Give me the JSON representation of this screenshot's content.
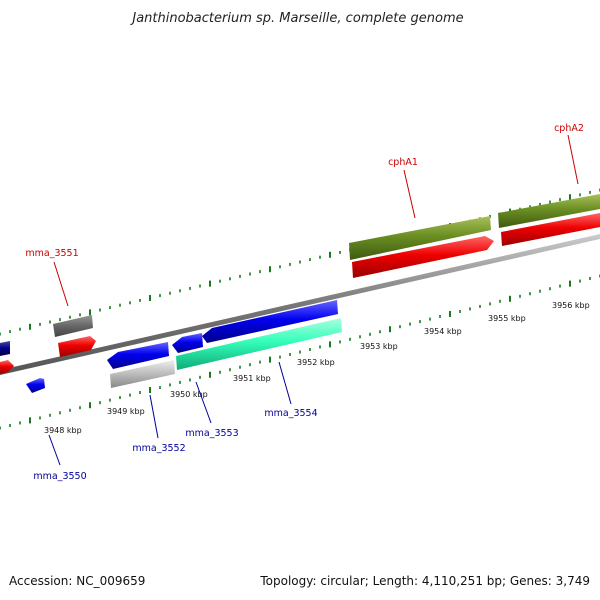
{
  "title": "Janthinobacterium sp. Marseille, complete genome",
  "footer": {
    "accession": "Accession: NC_009659",
    "stats": "Topology: circular; Length: 4,110,251 bp; Genes: 3,749"
  },
  "colors": {
    "backbone": "#888888",
    "tick": "#1a7a1a",
    "label_forward": "#cc0000",
    "label_reverse": "#000099",
    "cds_forward": "#ee0000",
    "cds_reverse": "#0000ee",
    "gene_forward": "#6b8e23",
    "gene_reverse": "#aaaaaa",
    "misc": "#33ffbb"
  },
  "ruler_labels": [
    "3948 kbp",
    "3949 kbp",
    "3950 kbp",
    "3951 kbp",
    "3952 kbp",
    "3953 kbp",
    "3954 kbp",
    "3955 kbp",
    "3956 kbp"
  ],
  "gene_labels": [
    {
      "name": "mma_3551",
      "strand": "forward"
    },
    {
      "name": "cphA1",
      "strand": "forward"
    },
    {
      "name": "cphA2",
      "strand": "forward"
    },
    {
      "name": "mma_3550",
      "strand": "reverse"
    },
    {
      "name": "mma_3552",
      "strand": "reverse"
    },
    {
      "name": "mma_3553",
      "strand": "reverse"
    },
    {
      "name": "mma_3554",
      "strand": "reverse"
    }
  ]
}
